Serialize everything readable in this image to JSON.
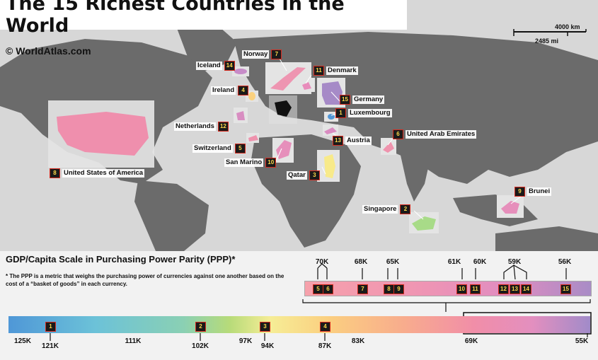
{
  "title": "The 15 Richest Countries in the World",
  "credit": "© WorldAtlas.com",
  "scale": {
    "km": "4000 km",
    "mi": "2485 mi"
  },
  "countries": [
    {
      "rank": "1",
      "name": "Luxembourg"
    },
    {
      "rank": "2",
      "name": "Singapore"
    },
    {
      "rank": "3",
      "name": "Qatar"
    },
    {
      "rank": "4",
      "name": "Ireland"
    },
    {
      "rank": "5",
      "name": "Switzerland"
    },
    {
      "rank": "6",
      "name": "United Arab Emirates"
    },
    {
      "rank": "7",
      "name": "Norway"
    },
    {
      "rank": "8",
      "name": "United States of America"
    },
    {
      "rank": "9",
      "name": "Brunei"
    },
    {
      "rank": "10",
      "name": "San Marino"
    },
    {
      "rank": "11",
      "name": "Denmark"
    },
    {
      "rank": "12",
      "name": "Netherlands"
    },
    {
      "rank": "13",
      "name": "Austria"
    },
    {
      "rank": "14",
      "name": "Iceland"
    },
    {
      "rank": "15",
      "name": "Germany"
    }
  ],
  "legend": {
    "title": "GDP/Capita Scale in Purchasing Power Parity (PPP)*",
    "note": "* The PPP is a metric that weighs the purchasing power of currencies against one another based on the cost of a “basket of goods” in each currency.",
    "main_bottom": [
      "125K",
      "121K",
      "111K",
      "102K",
      "97K",
      "94K",
      "87K",
      "83K",
      "69K",
      "55K"
    ],
    "main_markers": [
      "1",
      "2",
      "3",
      "4"
    ],
    "zoom_top": [
      "70K",
      "68K",
      "65K",
      "61K",
      "60K",
      "59K",
      "56K"
    ],
    "zoom_markers": [
      "5",
      "6",
      "7",
      "8",
      "9",
      "10",
      "11",
      "12",
      "13",
      "14",
      "15"
    ]
  },
  "colors": {
    "ocean": "#d7d7d7",
    "land": "#6b6b6b",
    "badge": "#1a1a1a",
    "badge_border": "#d62a1e",
    "badge_text": "#ffd84a"
  }
}
